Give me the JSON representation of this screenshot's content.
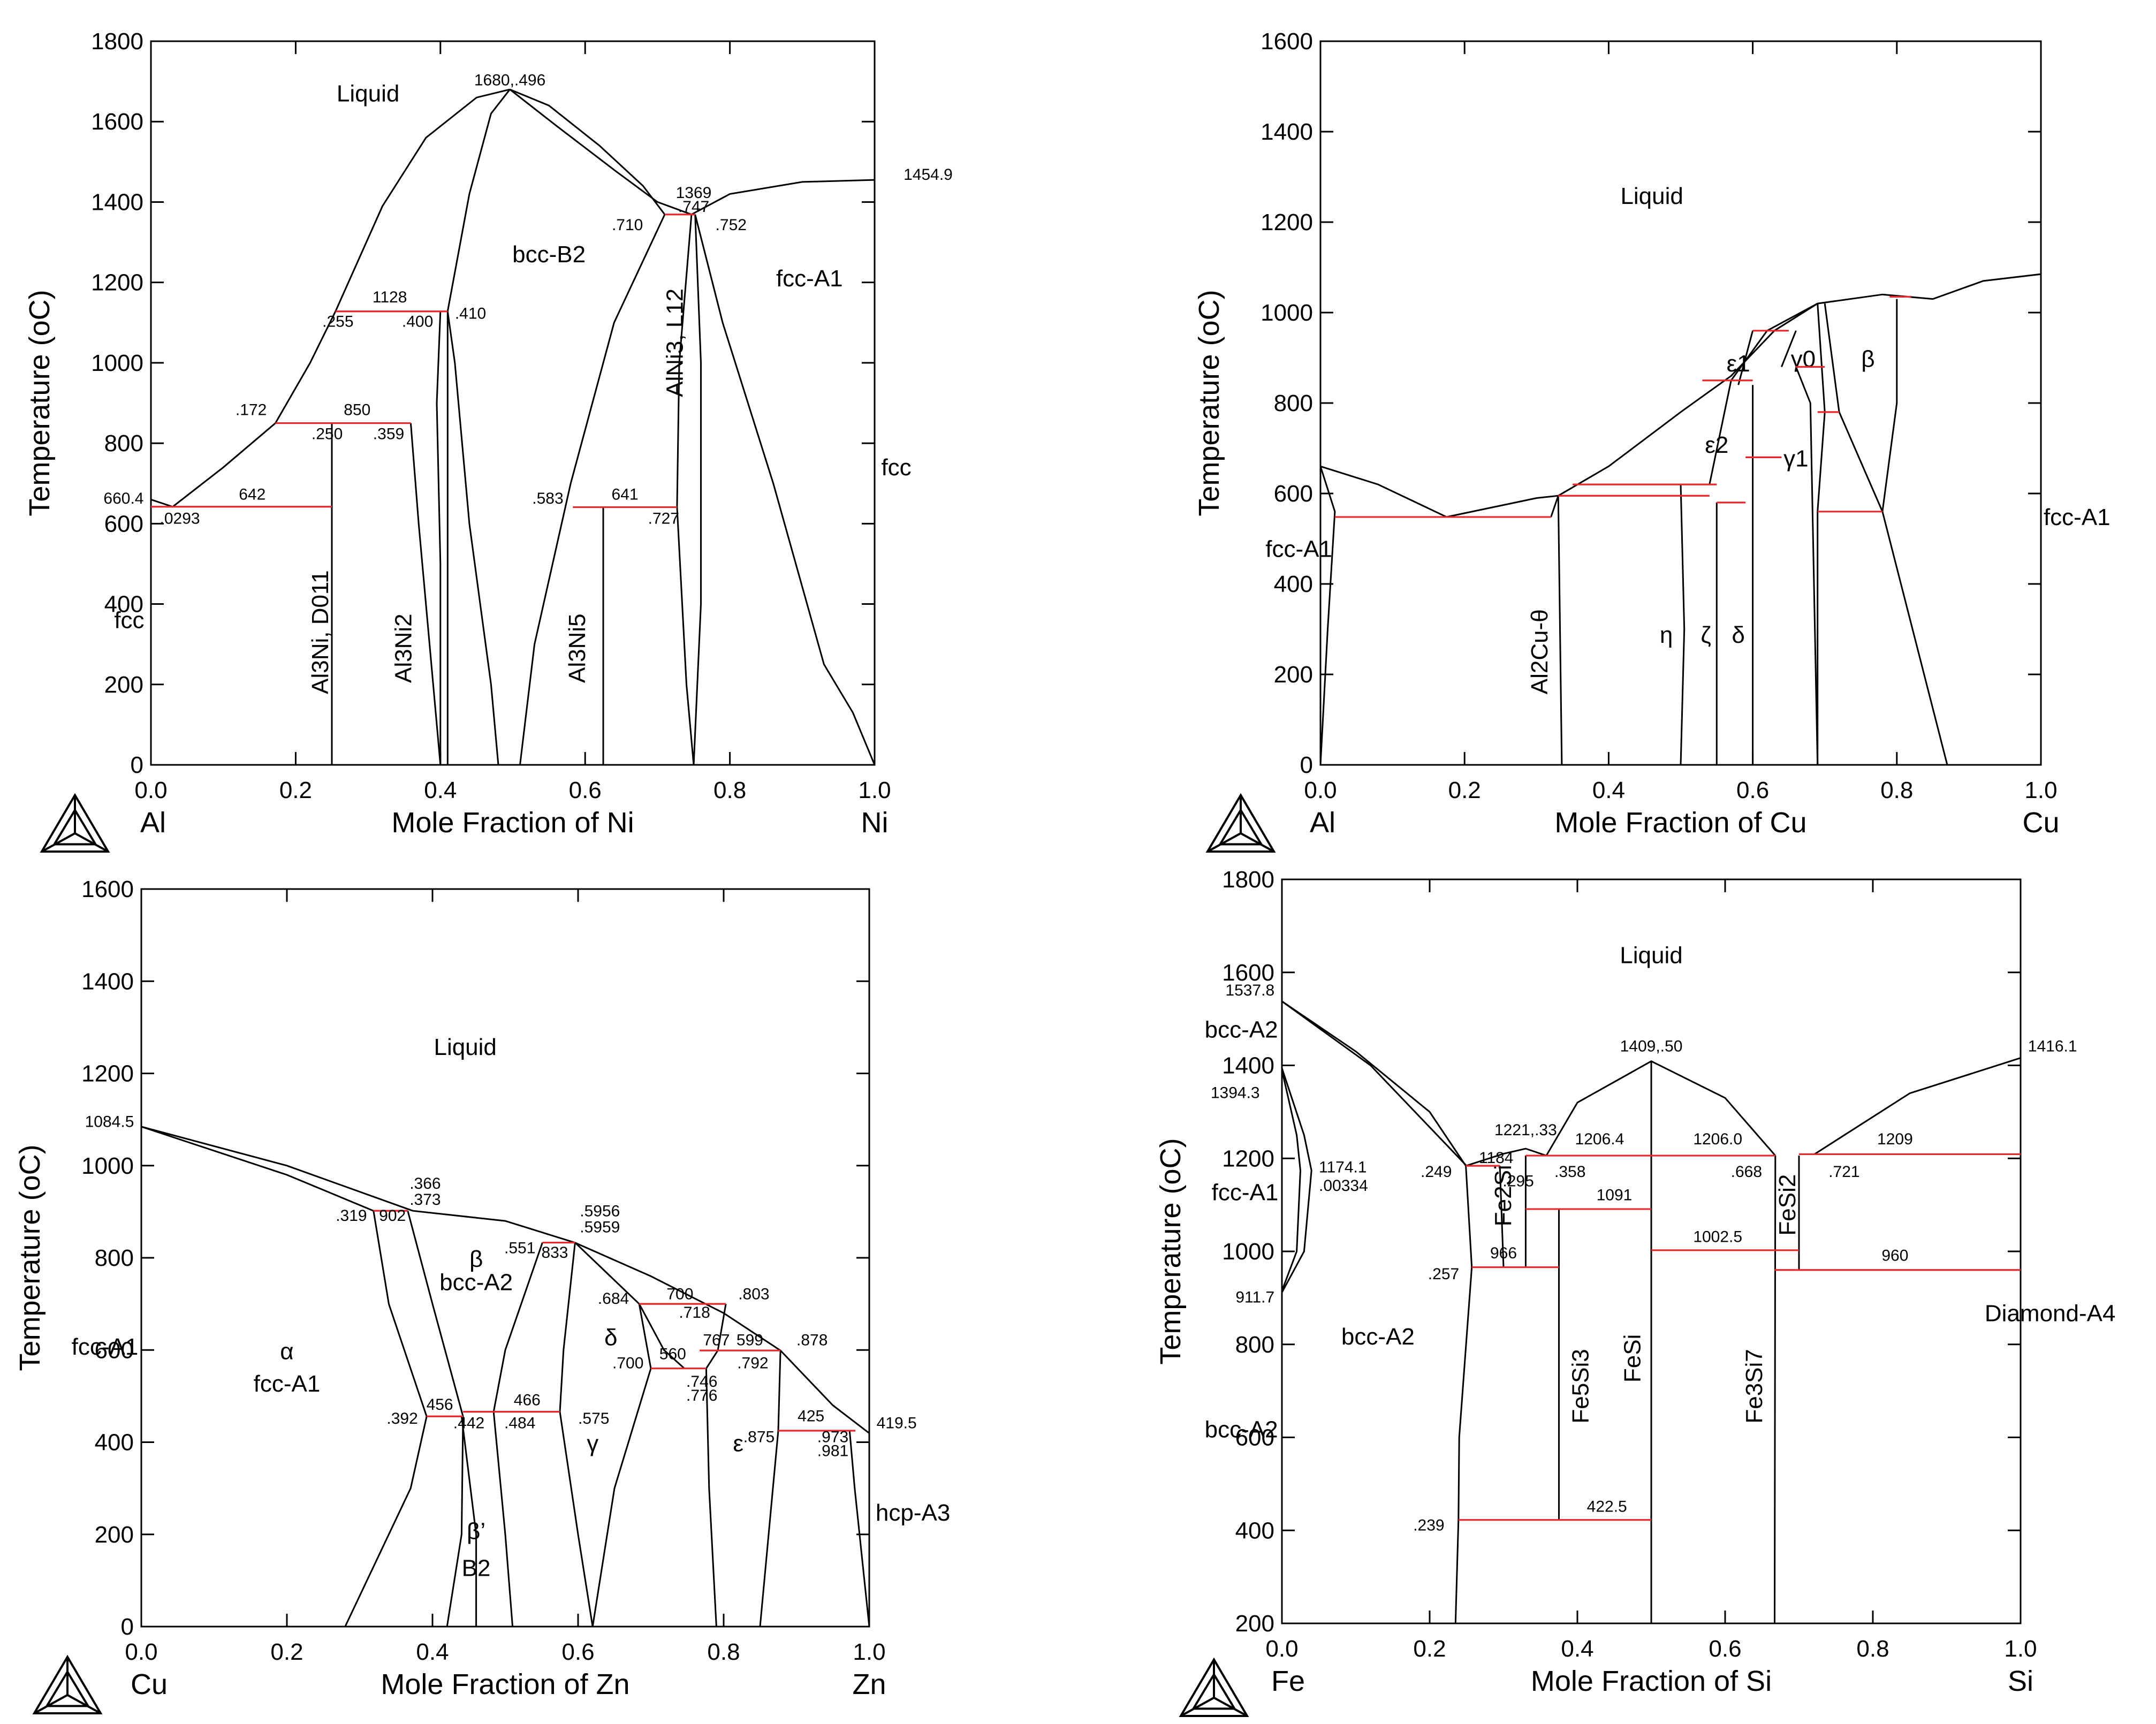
{
  "chart_data": [
    {
      "id": "alni",
      "type": "phase_diagram",
      "xlabel": "Mole Fraction of Ni",
      "ylabel": "Temperature (oC)",
      "xlim": [
        0,
        1
      ],
      "ylim": [
        0,
        1800
      ],
      "x_ticks": [
        "0.0",
        "0.2",
        "0.4",
        "0.6",
        "0.8",
        "1.0"
      ],
      "y_ticks": [
        "0",
        "200",
        "400",
        "600",
        "800",
        "1000",
        "1200",
        "1400",
        "1600",
        "1800"
      ],
      "left_element": "Al",
      "right_element": "Ni",
      "phases": [
        {
          "text": "Liquid",
          "x": 0.3,
          "y": 1650
        },
        {
          "text": "bcc-B2",
          "x": 0.55,
          "y": 1250
        },
        {
          "text": "fcc-A1",
          "x": 0.91,
          "y": 1190
        },
        {
          "text": "fcc",
          "x": 1.03,
          "y": 720
        },
        {
          "text": "fcc",
          "x": -0.03,
          "y": 340
        },
        {
          "text": "Al3Ni, D011",
          "x": 0.245,
          "y": 330,
          "rotate": -90
        },
        {
          "text": "Al3Ni2",
          "x": 0.36,
          "y": 290,
          "rotate": -90
        },
        {
          "text": "Al3Ni5",
          "x": 0.6,
          "y": 290,
          "rotate": -90
        },
        {
          "text": "AlNi3, L12",
          "x": 0.735,
          "y": 1050,
          "rotate": -90
        }
      ],
      "annotations": [
        "1680,.496",
        "1369",
        ".747",
        ".710",
        ".752",
        "1454.9",
        "1128",
        ".255",
        ".400",
        ".410",
        "850",
        ".172",
        ".250",
        ".359",
        "660.4",
        "642",
        ".0293",
        ".583",
        "641",
        ".727"
      ]
    },
    {
      "id": "alcu",
      "type": "phase_diagram",
      "xlabel": "Mole Fraction of Cu",
      "ylabel": "Temperature (oC)",
      "xlim": [
        0,
        1
      ],
      "ylim": [
        0,
        1600
      ],
      "x_ticks": [
        "0.0",
        "0.2",
        "0.4",
        "0.6",
        "0.8",
        "1.0"
      ],
      "y_ticks": [
        "0",
        "200",
        "400",
        "600",
        "800",
        "1000",
        "1200",
        "1400",
        "1600"
      ],
      "left_element": "Al",
      "right_element": "Cu",
      "phases": [
        {
          "text": "Liquid",
          "x": 0.46,
          "y": 1240
        },
        {
          "text": "fcc-A1",
          "x": -0.03,
          "y": 460
        },
        {
          "text": "fcc-A1",
          "x": 1.05,
          "y": 530
        },
        {
          "text": "ε1",
          "x": 0.58,
          "y": 870
        },
        {
          "text": "γ0",
          "x": 0.67,
          "y": 880
        },
        {
          "text": "β",
          "x": 0.76,
          "y": 880
        },
        {
          "text": "ε2",
          "x": 0.55,
          "y": 690
        },
        {
          "text": "γ1",
          "x": 0.66,
          "y": 660
        },
        {
          "text": "Al2Cu-θ",
          "x": 0.315,
          "y": 250,
          "rotate": -90
        },
        {
          "text": "η",
          "x": 0.48,
          "y": 270
        },
        {
          "text": "ζ",
          "x": 0.535,
          "y": 270
        },
        {
          "text": "δ",
          "x": 0.58,
          "y": 270
        }
      ],
      "annotations": []
    },
    {
      "id": "cuzn",
      "type": "phase_diagram",
      "xlabel": "Mole Fraction of Zn",
      "ylabel": "Temperature (oC)",
      "xlim": [
        0,
        1
      ],
      "ylim": [
        0,
        1600
      ],
      "x_ticks": [
        "0.0",
        "0.2",
        "0.4",
        "0.6",
        "0.8",
        "1.0"
      ],
      "y_ticks": [
        "0",
        "200",
        "400",
        "600",
        "800",
        "1000",
        "1200",
        "1400",
        "1600"
      ],
      "left_element": "Cu",
      "right_element": "Zn",
      "phases": [
        {
          "text": "Liquid",
          "x": 0.445,
          "y": 1240
        },
        {
          "text": "β",
          "x": 0.46,
          "y": 780
        },
        {
          "text": "bcc-A2",
          "x": 0.46,
          "y": 730
        },
        {
          "text": "α",
          "x": 0.2,
          "y": 580
        },
        {
          "text": "fcc-A1",
          "x": 0.2,
          "y": 510
        },
        {
          "text": "fcc-A1",
          "x": -0.05,
          "y": 590
        },
        {
          "text": "γ",
          "x": 0.62,
          "y": 380
        },
        {
          "text": "ε",
          "x": 0.82,
          "y": 380
        },
        {
          "text": "δ",
          "x": 0.645,
          "y": 610
        },
        {
          "text": "β’",
          "x": 0.46,
          "y": 190
        },
        {
          "text": "B2",
          "x": 0.46,
          "y": 110
        },
        {
          "text": "hcp-A3",
          "x": 1.06,
          "y": 230
        }
      ],
      "annotations": [
        "1084.5",
        ".366",
        ".373",
        ".319",
        "902",
        ".5956",
        ".5959",
        ".551",
        "833",
        ".684",
        "700",
        ".803",
        ".718",
        "767",
        "599",
        ".878",
        ".700",
        "560",
        ".746",
        ".776",
        ".792",
        "456",
        ".392",
        ".442",
        "466",
        ".484",
        ".575",
        "425",
        ".875",
        ".973",
        ".981",
        "419.5"
      ]
    },
    {
      "id": "fesi",
      "type": "phase_diagram",
      "xlabel": "Mole Fraction of Si",
      "ylabel": "Temperature (oC)",
      "xlim": [
        0,
        1
      ],
      "ylim": [
        200,
        1800
      ],
      "x_ticks": [
        "0.0",
        "0.2",
        "0.4",
        "0.6",
        "0.8",
        "1.0"
      ],
      "y_ticks": [
        "200",
        "400",
        "600",
        "800",
        "1000",
        "1200",
        "1400",
        "1600",
        "1800"
      ],
      "left_element": "Fe",
      "right_element": "Si",
      "phases": [
        {
          "text": "Liquid",
          "x": 0.5,
          "y": 1620
        },
        {
          "text": "bcc-A2",
          "x": -0.055,
          "y": 1460
        },
        {
          "text": "fcc-A1",
          "x": -0.05,
          "y": 1110
        },
        {
          "text": "bcc-A2",
          "x": 0.13,
          "y": 800
        },
        {
          "text": "bcc-A2",
          "x": -0.055,
          "y": 600
        },
        {
          "text": "Diamond-A4",
          "x": 1.04,
          "y": 850
        },
        {
          "text": "Fe2Si",
          "x": 0.31,
          "y": 1120,
          "rotate": -90
        },
        {
          "text": "Fe5Si3",
          "x": 0.415,
          "y": 710,
          "rotate": -90
        },
        {
          "text": "FeSi",
          "x": 0.485,
          "y": 770,
          "rotate": -90
        },
        {
          "text": "Fe3Si7",
          "x": 0.65,
          "y": 710,
          "rotate": -90
        },
        {
          "text": "FeSi2",
          "x": 0.695,
          "y": 1100,
          "rotate": -90
        }
      ],
      "annotations": [
        "1537.8",
        "1394.3",
        "911.7",
        "1174.1",
        ".00334",
        "1221,.33",
        "1184",
        ".249",
        ".295",
        ".358",
        "1206.4",
        "1409,.50",
        "1206.0",
        ".668",
        ".721",
        "1209",
        "1091",
        "966",
        ".257",
        "1002.5",
        "960",
        ".239",
        "422.5",
        "1416.1"
      ]
    }
  ]
}
